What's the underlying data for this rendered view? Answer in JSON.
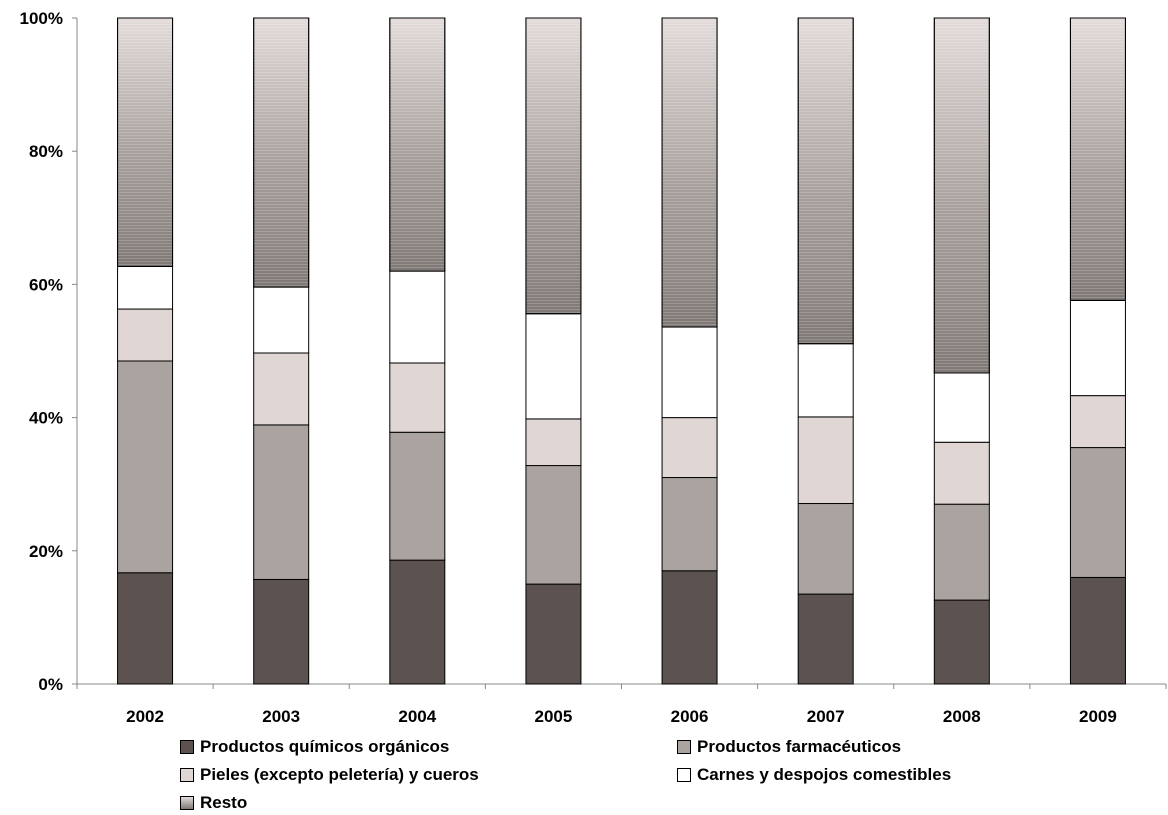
{
  "chart_data": {
    "type": "bar",
    "stacked": true,
    "categories": [
      "2002",
      "2003",
      "2004",
      "2005",
      "2006",
      "2007",
      "2008",
      "2009"
    ],
    "series": [
      {
        "name": "Productos químicos orgánicos",
        "color": "#5c5350",
        "values": [
          16.7,
          15.7,
          18.6,
          15.0,
          17.0,
          13.5,
          12.6,
          16.0
        ]
      },
      {
        "name": "Productos farmacéuticos",
        "color": "#aaa3a0",
        "values": [
          31.8,
          23.2,
          19.2,
          17.8,
          14.0,
          13.6,
          14.4,
          19.5
        ]
      },
      {
        "name": "Pieles (excepto peletería) y cueros",
        "color": "#e0d7d5",
        "values": [
          7.8,
          10.8,
          10.4,
          7.0,
          9.0,
          13.0,
          9.3,
          7.8
        ]
      },
      {
        "name": "Carnes y despojos comestibles",
        "color": "#ffffff",
        "values": [
          6.4,
          9.9,
          13.8,
          15.8,
          13.6,
          11.0,
          10.4,
          14.3
        ]
      },
      {
        "name": "Resto",
        "color": "gradient",
        "values": [
          37.3,
          40.4,
          38.0,
          44.4,
          46.4,
          48.9,
          53.3,
          42.4
        ]
      }
    ],
    "y_ticks": [
      "0%",
      "20%",
      "40%",
      "60%",
      "80%",
      "100%"
    ],
    "ylim": [
      0,
      100
    ],
    "grid": false,
    "legend_position": "bottom"
  }
}
